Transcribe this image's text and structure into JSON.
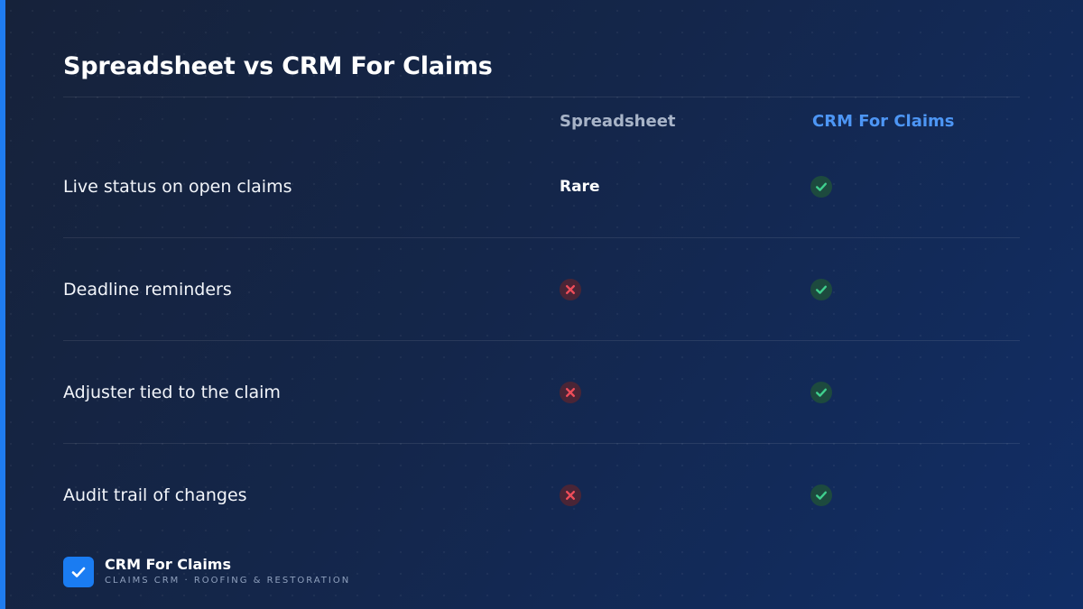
{
  "slide": {
    "title": "Spreadsheet vs CRM For Claims"
  },
  "columns": {
    "spreadsheet": "Spreadsheet",
    "crm": "CRM For Claims"
  },
  "rows": [
    {
      "label": "Live status on open claims",
      "spreadsheet": {
        "type": "text",
        "text": "Rare"
      },
      "crm": {
        "type": "check",
        "icon": "check-icon"
      }
    },
    {
      "label": "Deadline reminders",
      "spreadsheet": {
        "type": "cross",
        "icon": "cross-icon"
      },
      "crm": {
        "type": "check",
        "icon": "check-icon"
      }
    },
    {
      "label": "Adjuster tied to the claim",
      "spreadsheet": {
        "type": "cross",
        "icon": "cross-icon"
      },
      "crm": {
        "type": "check",
        "icon": "check-icon"
      }
    },
    {
      "label": "Audit trail of changes",
      "spreadsheet": {
        "type": "cross",
        "icon": "cross-icon"
      },
      "crm": {
        "type": "check",
        "icon": "check-icon"
      }
    }
  ],
  "brand": {
    "name": "CRM For Claims",
    "tagline": "CLAIMS CRM · ROOFING & RESTORATION",
    "icon": "checkbox-logo-icon"
  },
  "colors": {
    "background": "#14264a",
    "accent": "#1f7cf0",
    "crm_header": "#4d96f5",
    "check": "#3fcf8e",
    "cross": "#ef4d5a"
  }
}
